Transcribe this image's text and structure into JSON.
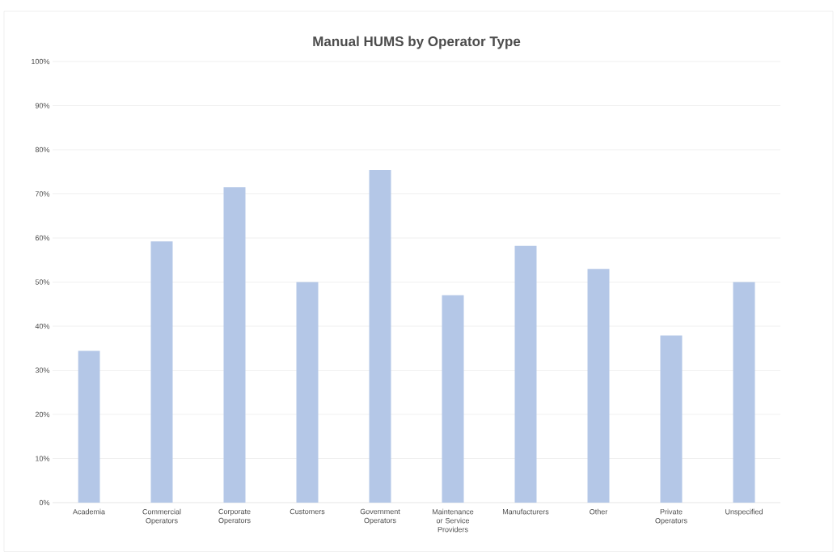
{
  "chart_data": {
    "type": "bar",
    "title": "Manual HUMS by Operator Type",
    "categories": [
      "Academia",
      "Commercial Operators",
      "Corporate Operators",
      "Customers",
      "Government Operators",
      "Maintenance or Service Providers",
      "Manufacturers",
      "Other",
      "Private Operators",
      "Unspecified"
    ],
    "values": [
      34.4,
      59.2,
      71.5,
      50,
      75.4,
      47,
      58.2,
      53,
      37.9,
      50
    ],
    "color": "#b4c7e7",
    "ylim": [
      0,
      100
    ],
    "yticks": [
      {
        "value": 0,
        "label": "0%"
      },
      {
        "value": 10,
        "label": "10%"
      },
      {
        "value": 20,
        "label": "20%"
      },
      {
        "value": 30,
        "label": "30%"
      },
      {
        "value": 40,
        "label": "40%"
      },
      {
        "value": 50,
        "label": "50%"
      },
      {
        "value": 60,
        "label": "60%"
      },
      {
        "value": 70,
        "label": "70%"
      },
      {
        "value": 80,
        "label": "80%"
      },
      {
        "value": 90,
        "label": "90%"
      },
      {
        "value": 100,
        "label": "100%"
      }
    ],
    "grid": "y"
  }
}
